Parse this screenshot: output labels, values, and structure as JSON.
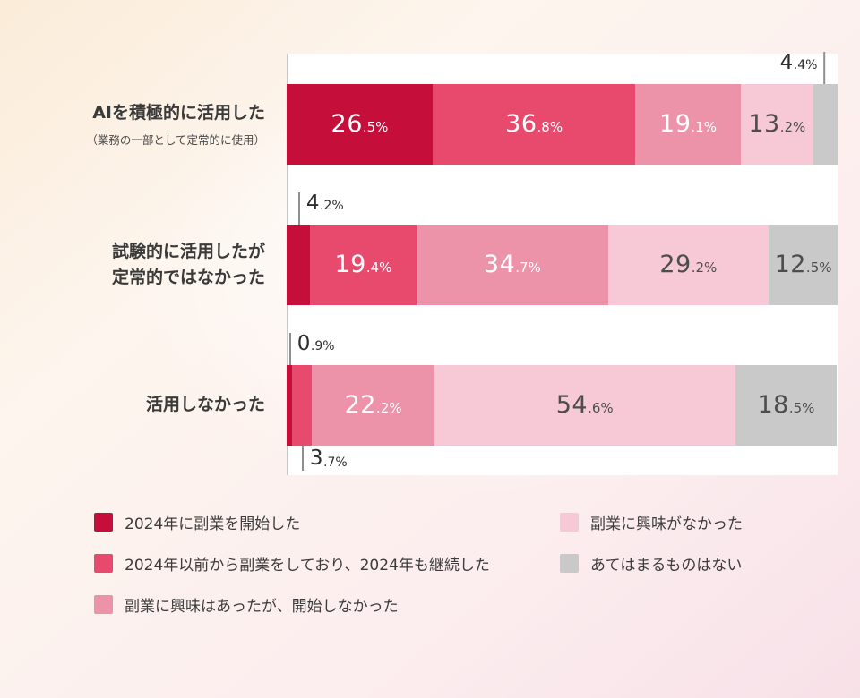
{
  "chart_data": {
    "type": "bar",
    "orientation": "horizontal",
    "stacked": true,
    "unit": "%",
    "xlim": [
      0,
      100
    ],
    "grid": false,
    "legend_position": "bottom",
    "categories": [
      {
        "label": "AIを積極的に活用した",
        "sublabel": "（業務の一部として定常的に使用）"
      },
      {
        "label": "試験的に活用したが\n定常的ではなかった",
        "sublabel": ""
      },
      {
        "label": "活用しなかった",
        "sublabel": ""
      }
    ],
    "series": [
      {
        "name": "2024年に副業を開始した",
        "color": "#c50f3a",
        "values": [
          26.5,
          4.2,
          0.9
        ]
      },
      {
        "name": "2024年以前から副業をしており、2024年も継続した",
        "color": "#e84a6e",
        "values": [
          36.8,
          19.4,
          3.7
        ]
      },
      {
        "name": "副業に興味はあったが、開始しなかった",
        "color": "#ec93aa",
        "values": [
          19.1,
          34.7,
          22.2
        ]
      },
      {
        "name": "副業に興味がなかった",
        "color": "#f7c9d6",
        "values": [
          13.2,
          29.2,
          54.6
        ]
      },
      {
        "name": "あてはまるものはない",
        "color": "#c9c9c9",
        "values": [
          4.4,
          12.5,
          18.5
        ]
      }
    ]
  }
}
